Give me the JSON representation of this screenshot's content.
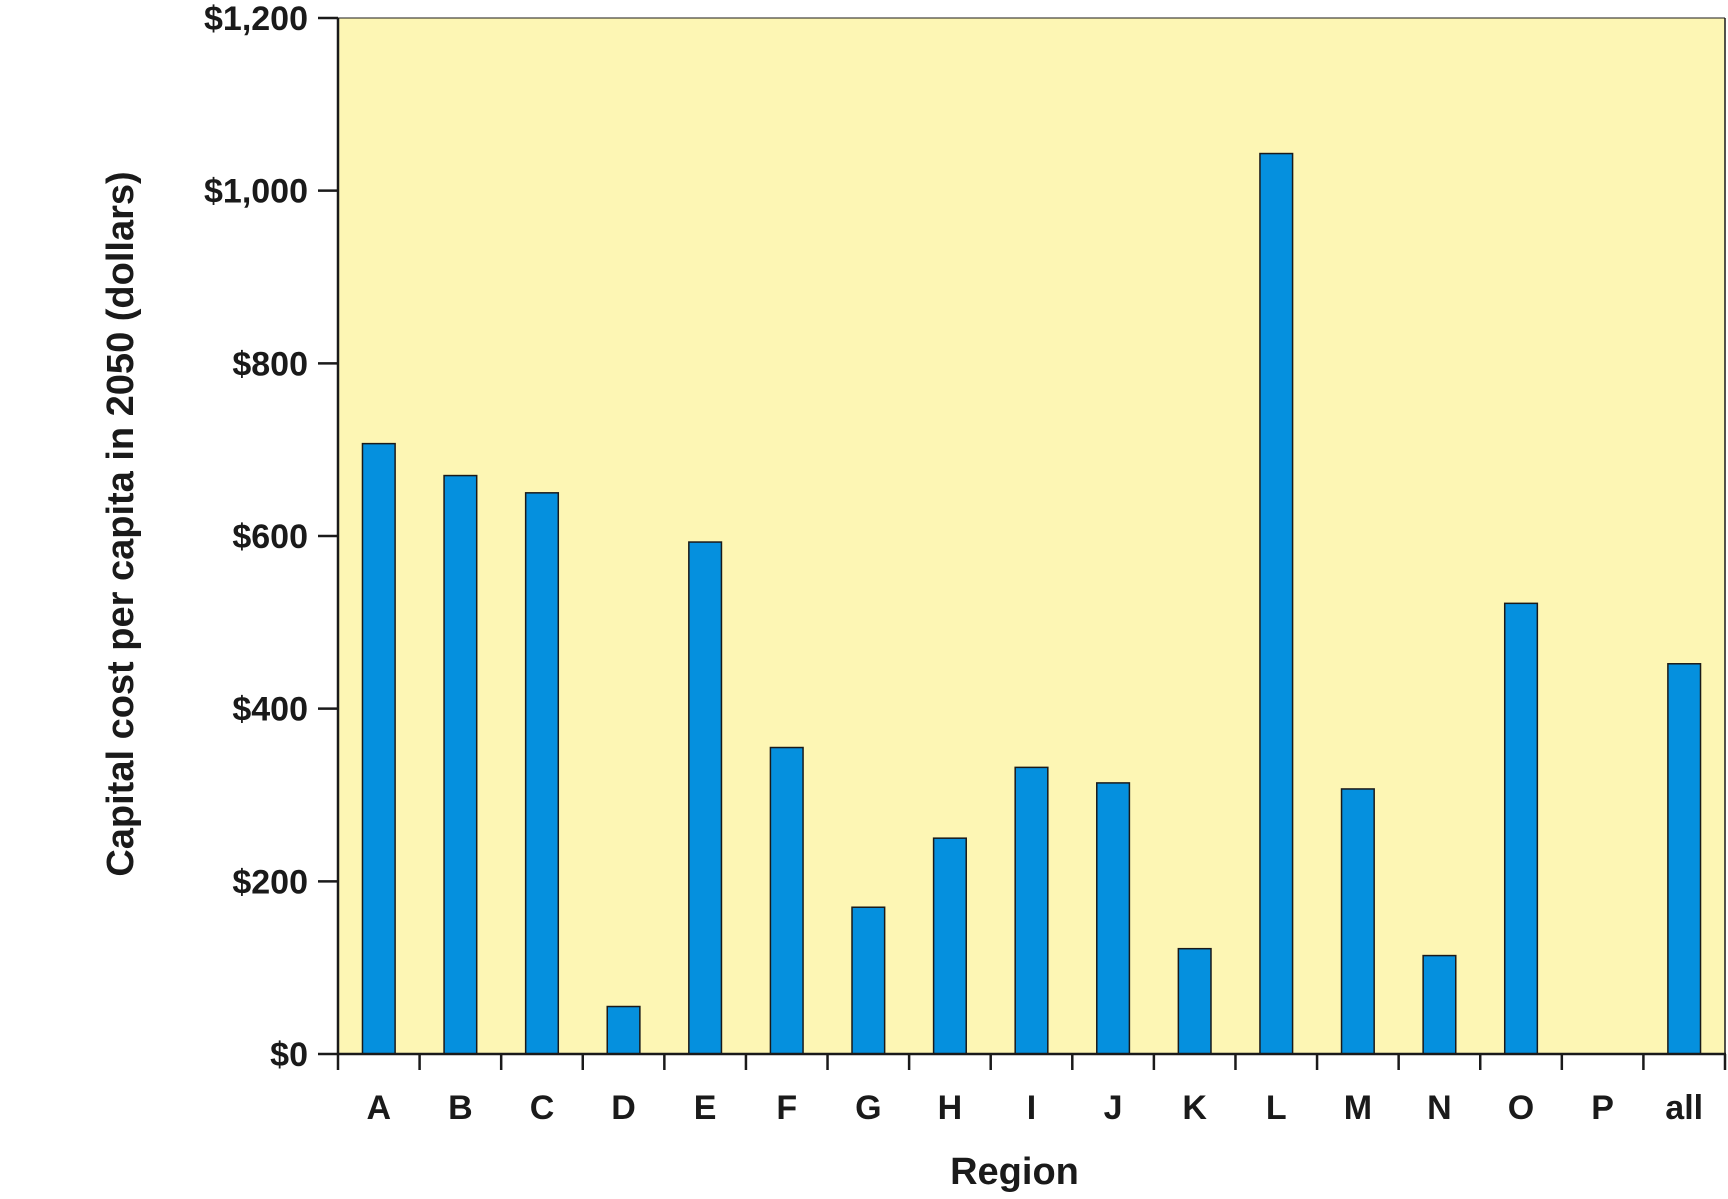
{
  "colors": {
    "plot_background": "#fdf6b4",
    "bar_fill": "#0590de",
    "bar_stroke": "#1a1a1a",
    "axis": "#1a1a1a",
    "text": "#1a1a1a"
  },
  "chart_data": {
    "type": "bar",
    "title": "",
    "xlabel": "Region",
    "ylabel": "Capital cost per capita in 2050 (dollars)",
    "ylim": [
      0,
      1200
    ],
    "y_ticks": [
      0,
      200,
      400,
      600,
      800,
      1000,
      1200
    ],
    "y_tick_labels": [
      "$0",
      "$200",
      "$400",
      "$600",
      "$800",
      "$1,000",
      "$1,200"
    ],
    "categories": [
      "A",
      "B",
      "C",
      "D",
      "E",
      "F",
      "G",
      "H",
      "I",
      "J",
      "K",
      "L",
      "M",
      "N",
      "O",
      "P",
      "all"
    ],
    "values": [
      707,
      670,
      650,
      55,
      593,
      355,
      170,
      250,
      332,
      314,
      122,
      1043,
      307,
      114,
      522,
      null,
      452
    ],
    "grid": false,
    "legend": "none"
  }
}
